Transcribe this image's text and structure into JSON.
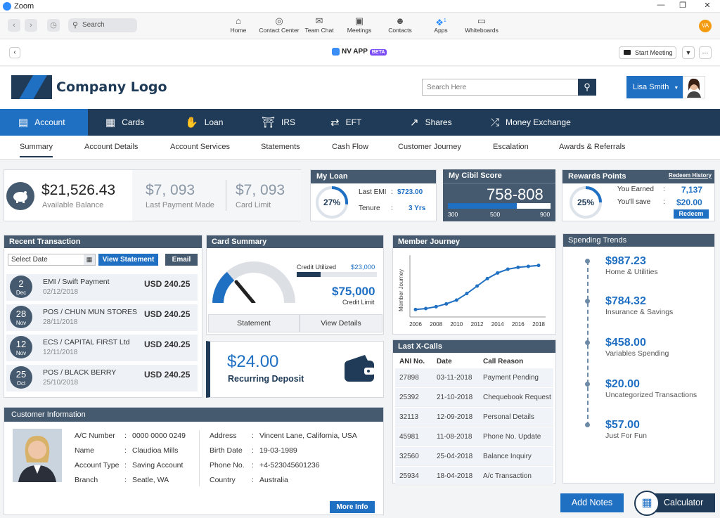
{
  "window": {
    "title": "Zoom"
  },
  "zoom_toolbar": {
    "search": "Search",
    "nav": [
      "Home",
      "Contact Center",
      "Team Chat",
      "Meetings",
      "Contacts",
      "Apps",
      "Whiteboards"
    ],
    "apps_badge": "1",
    "avatar": "VA"
  },
  "app_header": {
    "name": "NV APP",
    "beta": "BETA",
    "start_meeting": "Start Meeting"
  },
  "brand": {
    "logo_text": "Company Logo",
    "search_placeholder": "Search Here",
    "user": "Lisa Smith"
  },
  "main_nav": [
    "Account",
    "Cards",
    "Loan",
    "IRS",
    "EFT",
    "Shares",
    "Money Exchange"
  ],
  "sub_nav": [
    "Summary",
    "Account Details",
    "Account Services",
    "Statements",
    "Cash Flow",
    "Customer Journey",
    "Escalation",
    "Awards & Referrals"
  ],
  "balance": {
    "available": "$21,526.43",
    "available_label": "Available Balance",
    "last_payment": "$7, 093",
    "last_payment_label": "Last Payment Made",
    "card_limit": "$7, 093",
    "card_limit_label": "Card Limit"
  },
  "my_loan": {
    "title": "My Loan",
    "percent": "27%",
    "percent_value": 27,
    "emi_label": "Last EMI",
    "emi_sep": ":",
    "emi": "$723.00",
    "tenure_label": "Tenure",
    "tenure_sep": ":",
    "tenure": "3 Yrs"
  },
  "cibil": {
    "title": "My Cibil Score",
    "score": "758-808",
    "ticks": [
      "300",
      "500",
      "900"
    ],
    "fill_fraction": 0.67
  },
  "rewards": {
    "title": "Rewards Points",
    "history": "Redeem History",
    "percent": "25%",
    "percent_value": 25,
    "earned_label": "You Earned",
    "earned_sep": ":",
    "earned": "7,137",
    "save_label": "You'll save",
    "save_sep": ":",
    "save": "$20.00",
    "redeem": "Redeem"
  },
  "recent": {
    "title": "Recent Transaction",
    "date_placeholder": "Select Date",
    "view_statement": "View Statement",
    "email": "Email",
    "rows": [
      {
        "day": "2",
        "mon": "Dec",
        "name": "EMI / Swift Payment",
        "date": "02/12/2018",
        "amount": "USD 240.25"
      },
      {
        "day": "28",
        "mon": "Nov",
        "name": "POS / CHUN MUN STORES",
        "date": "28/11/2018",
        "amount": "USD 240.25"
      },
      {
        "day": "12",
        "mon": "Nov",
        "name": "ECS / CAPITAL FIRST Ltd",
        "date": "12/11/2018",
        "amount": "USD 240.25"
      },
      {
        "day": "25",
        "mon": "Oct",
        "name": "POS / BLACK BERRY",
        "date": "25/10/2018",
        "amount": "USD 240.25"
      }
    ]
  },
  "card_summary": {
    "title": "Card Summary",
    "credit_utilized_label": "Credit Utilized",
    "credit_utilized": "$23,000",
    "utilized_fraction": 0.3,
    "credit_limit": "$75,000",
    "credit_limit_label": "Credit Limit",
    "statement": "Statement",
    "view_details": "View Details"
  },
  "recurring": {
    "amount": "$24.00",
    "label": "Recurring Deposit"
  },
  "member_journey": {
    "title": "Member Journey"
  },
  "chart_data": {
    "type": "line",
    "ylabel": "Member Journey",
    "xlabel": "",
    "x_ticks": [
      "2006",
      "2008",
      "2010",
      "2012",
      "2014",
      "2016",
      "2018"
    ],
    "x": [
      2006,
      2007,
      2008,
      2009,
      2010,
      2011,
      2012,
      2013,
      2014,
      2015,
      2016,
      2017,
      2018
    ],
    "values": [
      5,
      6,
      8,
      11,
      15,
      22,
      30,
      38,
      44,
      48,
      50,
      51,
      52
    ],
    "ylim": [
      0,
      60
    ],
    "grid": false,
    "legend": "none"
  },
  "last_calls": {
    "title": "Last X-Calls",
    "headers": [
      "ANI No.",
      "Date",
      "Call Reason"
    ],
    "rows": [
      [
        "27898",
        "03-11-2018",
        "Payment Pending"
      ],
      [
        "25392",
        "21-10-2018",
        "Chequebook Request"
      ],
      [
        "32113",
        "12-09-2018",
        "Personal Details"
      ],
      [
        "45981",
        "11-08-2018",
        "Phone No. Update"
      ],
      [
        "32560",
        "25-04-2018",
        "Balance Inquiry"
      ],
      [
        "25934",
        "18-04-2018",
        "A/c Transaction"
      ]
    ]
  },
  "spending": {
    "title": "Spending Trends",
    "items": [
      {
        "amount": "$987.23",
        "label": "Home & Utilities"
      },
      {
        "amount": "$784.32",
        "label": "Insurance & Savings"
      },
      {
        "amount": "$458.00",
        "label": "Variables Spending"
      },
      {
        "amount": "$20.00",
        "label": "Uncategorized Transactions"
      },
      {
        "amount": "$57.00",
        "label": "Just For Fun"
      }
    ]
  },
  "customer": {
    "title": "Customer Information",
    "sep": ":",
    "left": [
      [
        "A/C Number",
        "0000 0000 0249"
      ],
      [
        "Name",
        "Claudioa Mills"
      ],
      [
        "Account Type",
        "Saving Account"
      ],
      [
        "Branch",
        "Seatle, WA"
      ]
    ],
    "right": [
      [
        "Address",
        "Vincent Lane, California, USA"
      ],
      [
        "Birth Date",
        "19-03-1989"
      ],
      [
        "Phone No.",
        "+4-523045601236"
      ],
      [
        "Country",
        "Australia"
      ]
    ],
    "more_info": "More Info"
  },
  "actions": {
    "add_notes": "Add Notes",
    "calculator": "Calculator"
  },
  "colors": {
    "navy": "#1f3b57",
    "accent": "#1f6fc2",
    "slate": "#455a6f"
  }
}
